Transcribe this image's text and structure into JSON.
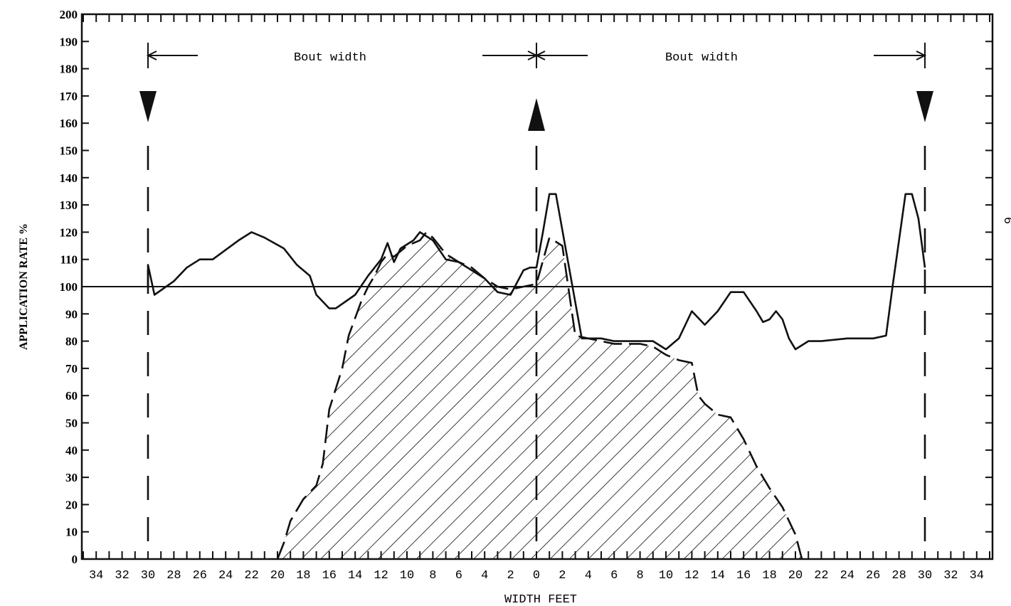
{
  "chart_data": {
    "type": "area",
    "title": "",
    "xlabel": "WIDTH FEET",
    "ylabel": "APPLICATION RATE %",
    "ylim": [
      0,
      200
    ],
    "y_ticks": [
      "0",
      "10",
      "20",
      "30",
      "40",
      "50",
      "60",
      "70",
      "80",
      "90",
      "100",
      "110",
      "120",
      "130",
      "140",
      "150",
      "160",
      "170",
      "180",
      "190",
      "200"
    ],
    "x_tick_labels": [
      "34",
      "32",
      "30",
      "28",
      "26",
      "24",
      "22",
      "20",
      "18",
      "16",
      "14",
      "12",
      "10",
      "8",
      "6",
      "4",
      "2",
      "0",
      "2",
      "4",
      "6",
      "8",
      "10",
      "12",
      "14",
      "16",
      "18",
      "20",
      "22",
      "24",
      "26",
      "28",
      "30",
      "32",
      "34"
    ],
    "reference_line": 100,
    "annotations": {
      "left_span": "Bout width",
      "right_span": "Bout width",
      "page_number": "6"
    },
    "series": [
      {
        "style": "solid line",
        "x": [
          -30,
          -30,
          -29.5,
          -28,
          -27,
          -26,
          -25,
          -23,
          -22,
          -21,
          -19.5,
          -18.5,
          -17.5,
          -17,
          -16,
          -15.5,
          -14,
          -13,
          -12,
          -11.5,
          -11,
          -10.5,
          -9.5,
          -9,
          -8,
          -7,
          -6,
          -5,
          -4,
          -3,
          -2,
          -1,
          -0.5,
          0,
          0.5,
          1,
          1.5,
          3.5,
          5,
          6,
          7,
          8,
          9,
          10,
          11,
          12,
          13,
          14,
          15,
          16,
          17,
          17.5,
          18,
          18.5,
          19,
          19.5,
          20,
          21,
          22,
          24,
          26,
          27,
          27.5,
          28.5,
          29,
          29.5,
          30
        ],
        "y": [
          100,
          108,
          97,
          102,
          107,
          110,
          110,
          117,
          120,
          118,
          114,
          108,
          104,
          97,
          92,
          92,
          97,
          104,
          110,
          116,
          109,
          114,
          117,
          120,
          117,
          110,
          109,
          106,
          103,
          98,
          97,
          106,
          107,
          107,
          120,
          134,
          134,
          81,
          81,
          80,
          80,
          80,
          80,
          77,
          81,
          91,
          86,
          91,
          98,
          98,
          91,
          87,
          88,
          91,
          88,
          81,
          77,
          80,
          80,
          81,
          81,
          82,
          100,
          134,
          134,
          125,
          107
        ]
      },
      {
        "style": "dashed line with hatched fill",
        "x": [
          -20,
          -19.5,
          -19,
          -18,
          -17,
          -16.5,
          -16,
          -15,
          -14.5,
          -13.5,
          -13,
          -12.5,
          -12,
          -11.5,
          -11,
          -10,
          -9,
          -8.5,
          -8,
          -7,
          -6,
          -5,
          -4,
          -3,
          -2,
          -1,
          0,
          1,
          2,
          3,
          4,
          5,
          6,
          7,
          8,
          9,
          10,
          11,
          12,
          12.5,
          13,
          14,
          15,
          16,
          17,
          18,
          19,
          20,
          20.5
        ],
        "y": [
          0,
          6,
          14,
          22,
          27,
          35,
          55,
          70,
          82,
          95,
          100,
          104,
          109,
          112,
          111,
          115,
          117,
          120,
          118,
          112,
          109,
          107,
          103,
          100,
          99,
          100,
          101,
          118,
          115,
          82,
          81,
          80,
          79,
          79,
          79,
          78,
          75,
          73,
          72,
          60,
          57,
          53,
          52,
          44,
          34,
          26,
          19,
          9,
          0
        ]
      }
    ]
  }
}
